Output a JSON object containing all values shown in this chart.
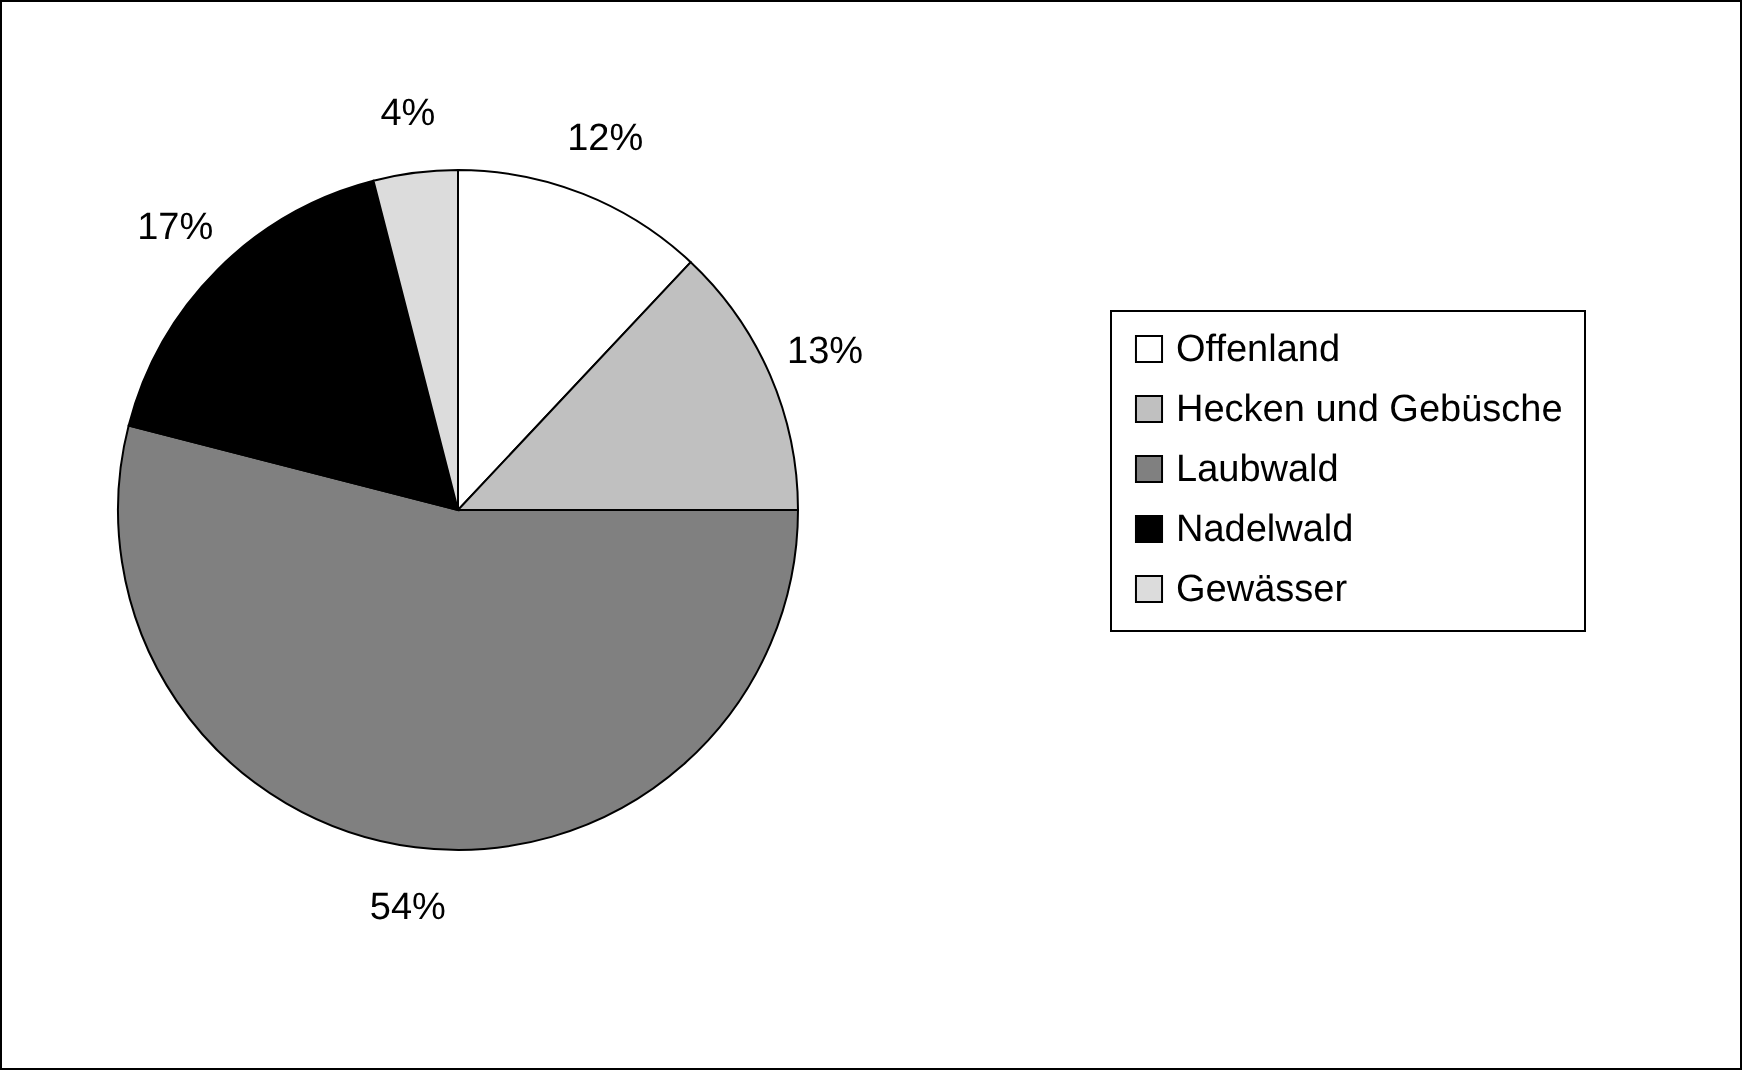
{
  "chart_data": {
    "type": "pie",
    "categories": [
      "Offenland",
      "Hecken und Gebüsche",
      "Laubwald",
      "Nadelwald",
      "Gewässer"
    ],
    "values": [
      12,
      13,
      54,
      17,
      4
    ],
    "colors": [
      "#ffffff",
      "#c0c0c0",
      "#808080",
      "#000000",
      "#dcdcdc"
    ],
    "value_labels": [
      "12%",
      "13%",
      "54%",
      "17%",
      "4%"
    ],
    "legend": "right"
  }
}
